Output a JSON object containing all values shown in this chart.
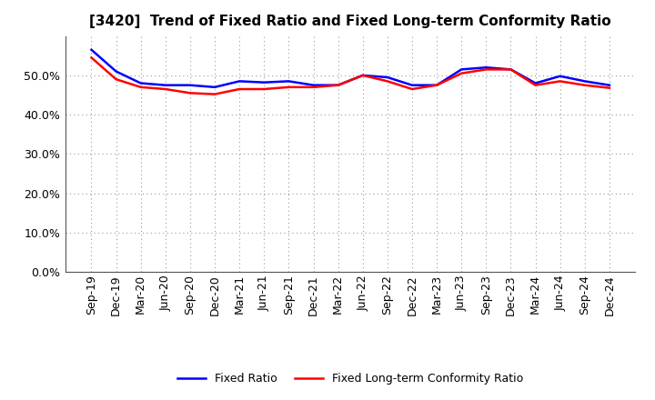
{
  "title": "[3420]  Trend of Fixed Ratio and Fixed Long-term Conformity Ratio",
  "x_labels": [
    "Sep-19",
    "Dec-19",
    "Mar-20",
    "Jun-20",
    "Sep-20",
    "Dec-20",
    "Mar-21",
    "Jun-21",
    "Sep-21",
    "Dec-21",
    "Mar-22",
    "Jun-22",
    "Sep-22",
    "Dec-22",
    "Mar-23",
    "Jun-23",
    "Sep-23",
    "Dec-23",
    "Mar-24",
    "Jun-24",
    "Sep-24",
    "Dec-24"
  ],
  "fixed_ratio": [
    56.5,
    51.0,
    48.0,
    47.5,
    47.5,
    47.0,
    48.5,
    48.2,
    48.5,
    47.5,
    47.5,
    50.0,
    49.5,
    47.5,
    47.5,
    51.5,
    52.0,
    51.5,
    48.0,
    49.8,
    48.5,
    47.5
  ],
  "fixed_lt_ratio": [
    54.5,
    49.0,
    47.0,
    46.5,
    45.5,
    45.2,
    46.5,
    46.5,
    47.0,
    47.0,
    47.5,
    50.0,
    48.5,
    46.5,
    47.5,
    50.5,
    51.5,
    51.5,
    47.5,
    48.5,
    47.5,
    46.8
  ],
  "fixed_ratio_color": "#0000ff",
  "fixed_lt_ratio_color": "#ff0000",
  "ylim": [
    0,
    60
  ],
  "yticks": [
    0,
    10,
    20,
    30,
    40,
    50
  ],
  "background_color": "#ffffff",
  "plot_bg_color": "#ffffff",
  "grid_color": "#999999",
  "line_width": 1.8,
  "legend_fixed_ratio": "Fixed Ratio",
  "legend_fixed_lt_ratio": "Fixed Long-term Conformity Ratio",
  "title_fontsize": 11,
  "tick_fontsize": 9,
  "legend_fontsize": 9
}
